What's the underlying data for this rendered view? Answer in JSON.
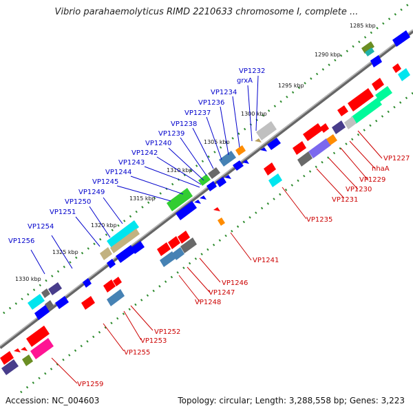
{
  "title": "Vibrio parahaemolyticus RIMD 2210633 chromosome I, complete ...",
  "footer": {
    "accession": "Accession: NC_004603",
    "summary": "Topology: circular; Length: 3,288,558 bp; Genes: 3,223"
  },
  "colors": {
    "forward_label": "#0000cc",
    "reverse_label": "#cc0000",
    "backbone": "#888888",
    "tick_dots": "#2e8b2e"
  },
  "tick_labels": [
    "1285 kbp",
    "1290 kbp",
    "1295 kbp",
    "1300 kbp",
    "1305 kbp",
    "1310 kbp",
    "1315 kbp",
    "1320 kbp",
    "1325 kbp",
    "1330 kbp"
  ],
  "forward_gene_labels": [
    "VP1232",
    "grxA",
    "VP1234",
    "VP1236",
    "VP1237",
    "VP1238",
    "VP1239",
    "VP1240",
    "VP1242",
    "VP1243",
    "VP1244",
    "VP1245",
    "VP1249",
    "VP1250",
    "VP1251",
    "VP1254",
    "VP1256"
  ],
  "reverse_gene_labels": [
    "VP1227",
    "nhaA",
    "VP1229",
    "VP1230",
    "VP1231",
    "VP1235",
    "VP1241",
    "VP1246",
    "VP1247",
    "VP1248",
    "VP1252",
    "VP1253",
    "VP1255",
    "VP1259"
  ]
}
